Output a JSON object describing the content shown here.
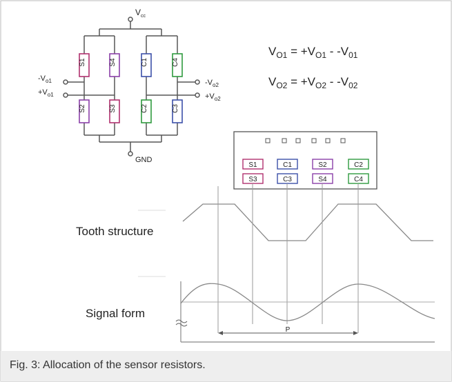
{
  "bridge": {
    "vcc_main": "V",
    "vcc_sub": "cc",
    "gnd": "GND",
    "left_top_main": "-V",
    "left_top_sub": "o1",
    "left_bottom_main": "+V",
    "left_bottom_sub": "o1",
    "right_top_main": "-V",
    "right_top_sub": "o2",
    "right_bottom_main": "+V",
    "right_bottom_sub": "o2",
    "resistors_top": [
      "S1",
      "S4",
      "C1",
      "C4"
    ],
    "resistors_bottom": [
      "S2",
      "S3",
      "C2",
      "C3"
    ]
  },
  "equations": {
    "eq1": {
      "a": "V",
      "a_sub": "O1",
      "b": " = +V",
      "b_sub": "O1",
      "c": " - -V",
      "c_sub": "01"
    },
    "eq2": {
      "a": "V",
      "a_sub": "O2",
      "b": " = +V",
      "b_sub": "O2",
      "c": " - -V",
      "c_sub": "02"
    }
  },
  "sensor": {
    "row1": [
      "S1",
      "C1",
      "S2",
      "C2"
    ],
    "row2": [
      "S3",
      "C3",
      "S4",
      "C4"
    ]
  },
  "labels": {
    "tooth": "Tooth structure",
    "signal": "Signal form",
    "period": "P"
  },
  "caption": "Fig. 3: Allocation of the sensor resistors.",
  "colors": {
    "S": "#b0306e",
    "C_blue": "#3b4fa8",
    "C_green": "#2e9a3e",
    "line": "#666666",
    "purple": "#8a3fa8"
  }
}
